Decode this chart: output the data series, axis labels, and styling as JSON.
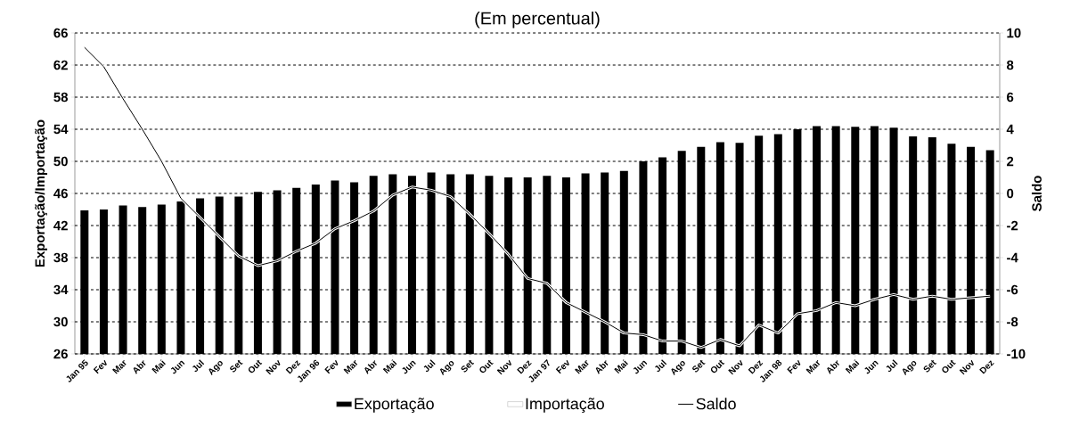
{
  "chart_data": {
    "type": "bar",
    "title": "(Em percentual)",
    "ylabel": "Exportação/Importação",
    "y2label": "Saldo",
    "categories": [
      "Jan 95",
      "Fev",
      "Mar",
      "Abr",
      "Mai",
      "Jun",
      "Jul",
      "Ago",
      "Set",
      "Out",
      "Nov",
      "Dez",
      "Jan 96",
      "Fev",
      "Mar",
      "Abr",
      "Mai",
      "Jun",
      "Jul",
      "Ago",
      "Set",
      "Out",
      "Nov",
      "Dez",
      "Jan 97",
      "Fev",
      "Mar",
      "Abr",
      "Mai",
      "Jun",
      "Jul",
      "Ago",
      "Set",
      "Out",
      "Nov",
      "Dez",
      "Jan 98",
      "Fev",
      "Mar",
      "Abr",
      "Mai",
      "Jun",
      "Jul",
      "Ago",
      "Set",
      "Out",
      "Nov",
      "Dez"
    ],
    "series": [
      {
        "name": "Exportação",
        "color": "#000000",
        "values": [
          43.9,
          44.0,
          44.5,
          44.3,
          44.6,
          45.0,
          45.4,
          45.6,
          45.6,
          46.2,
          46.4,
          46.7,
          47.1,
          47.6,
          47.4,
          48.2,
          48.4,
          48.2,
          48.6,
          48.4,
          48.4,
          48.2,
          48.0,
          48.0,
          48.2,
          48.0,
          48.5,
          48.6,
          48.8,
          50.0,
          50.5,
          51.3,
          51.8,
          52.4,
          52.3,
          53.2,
          53.4,
          54.0,
          54.4,
          54.4,
          54.3,
          54.4,
          54.2,
          53.1,
          53.0,
          52.2,
          51.8,
          51.4
        ]
      },
      {
        "name": "Importação",
        "color": "#ffffff",
        "values": [
          null,
          null,
          null,
          null,
          null,
          null,
          null,
          null,
          null,
          null,
          null,
          null,
          null,
          null,
          null,
          null,
          null,
          null,
          null,
          null,
          null,
          null,
          null,
          null,
          null,
          null,
          null,
          null,
          null,
          null,
          null,
          null,
          null,
          null,
          null,
          null,
          null,
          null,
          null,
          null,
          null,
          null,
          null,
          null,
          null,
          null,
          null,
          null
        ]
      },
      {
        "name": "Saldo",
        "type": "line",
        "axis": "y2",
        "color": "#000000",
        "values": [
          9.1,
          7.9,
          5.9,
          4.0,
          2.0,
          -0.3,
          -1.5,
          -2.7,
          -3.9,
          -4.5,
          -4.2,
          -3.6,
          -3.1,
          -2.2,
          -1.7,
          -1.1,
          -0.1,
          0.4,
          0.2,
          -0.2,
          -1.3,
          -2.5,
          -3.8,
          -5.3,
          -5.6,
          -6.8,
          -7.4,
          -8.0,
          -8.7,
          -8.8,
          -9.2,
          -9.2,
          -9.6,
          -9.1,
          -9.5,
          -8.2,
          -8.7,
          -7.5,
          -7.3,
          -6.8,
          -7.0,
          -6.6,
          -6.3,
          -6.6,
          -6.4,
          -6.6,
          -6.5,
          -6.4
        ]
      }
    ],
    "ylim": [
      26,
      66
    ],
    "yticks": [
      26,
      30,
      34,
      38,
      42,
      46,
      50,
      54,
      58,
      62,
      66
    ],
    "y2lim": [
      -10,
      10
    ],
    "y2ticks": [
      -10,
      -8,
      -6,
      -4,
      -2,
      0,
      2,
      4,
      6,
      8,
      10
    ],
    "grid": "y",
    "legend": "bottom",
    "marker": "none",
    "line_style": "solid"
  }
}
